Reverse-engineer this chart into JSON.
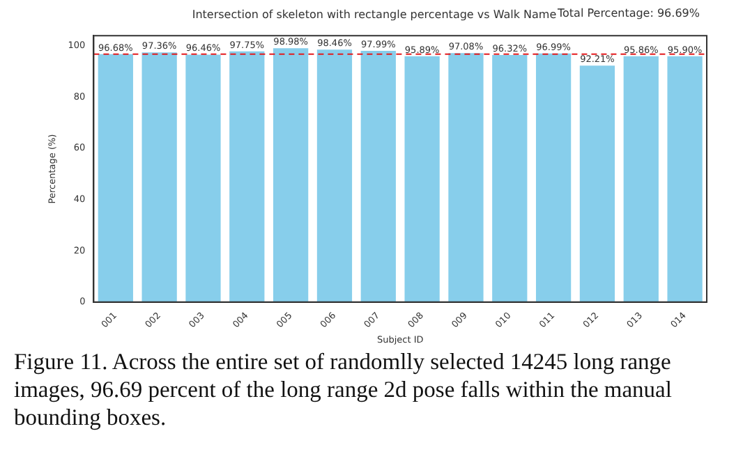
{
  "chart_data": {
    "type": "bar",
    "title": "Intersection of skeleton with rectangle percentage vs Walk Name",
    "xlabel": "Subject ID",
    "ylabel": "Percentage (%)",
    "categories": [
      "001",
      "002",
      "003",
      "004",
      "005",
      "006",
      "007",
      "008",
      "009",
      "010",
      "011",
      "012",
      "013",
      "014"
    ],
    "values": [
      96.68,
      97.36,
      96.46,
      97.75,
      98.98,
      98.46,
      97.99,
      95.89,
      97.08,
      96.32,
      96.99,
      92.21,
      95.86,
      95.9
    ],
    "value_labels": [
      "96.68%",
      "97.36%",
      "96.46%",
      "97.75%",
      "98.98%",
      "98.46%",
      "97.99%",
      "95.89%",
      "97.08%",
      "96.32%",
      "96.99%",
      "92.21%",
      "95.86%",
      "95.90%"
    ],
    "color": "#87ceeb",
    "ylim": [
      0,
      103.9
    ],
    "yticks": [
      0,
      20,
      40,
      60,
      80,
      100
    ],
    "grid": false,
    "legend": false,
    "ref_lines": [
      {
        "axis": "y",
        "value": 96.69,
        "color": "#e41a1c",
        "line_style": "dashed"
      }
    ],
    "annotations": [
      "Total Percentage: 96.69%",
      "Figure 11. Across the entire set of randomlly selected 14245 long range images, 96.69 percent of the long range 2d pose falls within the manual bounding boxes."
    ]
  }
}
